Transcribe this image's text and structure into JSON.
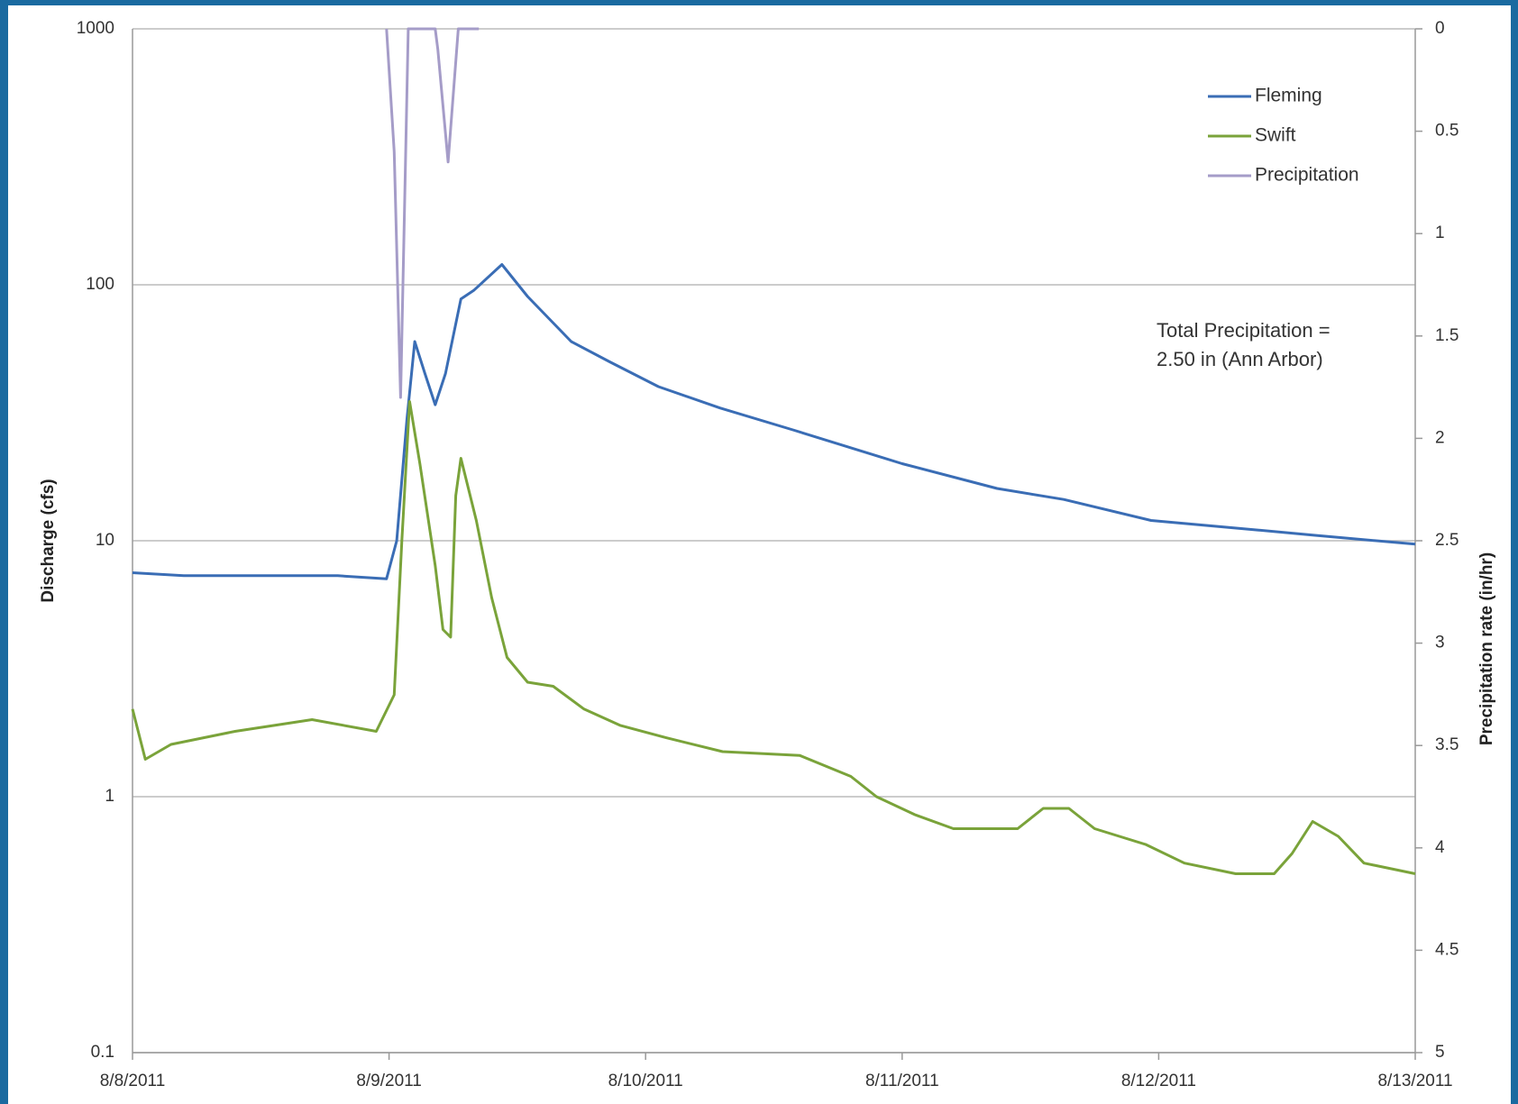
{
  "chart_data": {
    "type": "line",
    "y_label": "Discharge (cfs)",
    "y2_label": "Precipitation rate (in/hr)",
    "annotation": [
      "Total Precipitation =",
      "2.50 in (Ann Arbor)"
    ],
    "xlim": [
      0,
      5
    ],
    "xticks": [
      {
        "value": 0,
        "label": "8/8/2011"
      },
      {
        "value": 1,
        "label": "8/9/2011"
      },
      {
        "value": 2,
        "label": "8/10/2011"
      },
      {
        "value": 3,
        "label": "8/11/2011"
      },
      {
        "value": 4,
        "label": "8/12/2011"
      },
      {
        "value": 5,
        "label": "8/13/2011"
      }
    ],
    "ylim": [
      0.1,
      1000
    ],
    "yticks": [
      0.1,
      1,
      10,
      100,
      1000
    ],
    "y_log": true,
    "y2lim": [
      0,
      5
    ],
    "y2ticks": [
      0,
      0.5,
      1,
      1.5,
      2,
      2.5,
      3,
      3.5,
      4,
      4.5,
      5
    ],
    "y2_reversed": true,
    "grid": true,
    "legend": "upper right",
    "series": [
      {
        "name": "Fleming",
        "color": "#3a6db5",
        "axis": "y",
        "x": [
          0,
          0.2,
          0.5,
          0.8,
          0.99,
          1.03,
          1.07,
          1.1,
          1.14,
          1.18,
          1.22,
          1.28,
          1.33,
          1.44,
          1.54,
          1.71,
          1.86,
          2.05,
          2.29,
          2.58,
          3.0,
          3.37,
          3.63,
          3.97,
          4.39,
          4.61,
          5.0
        ],
        "values": [
          7.5,
          7.3,
          7.3,
          7.3,
          7.1,
          10,
          30,
          60,
          45,
          34,
          45,
          88,
          95,
          120,
          90,
          60,
          50,
          40,
          33,
          27,
          20,
          16,
          14.5,
          12,
          11,
          10.5,
          9.7
        ]
      },
      {
        "name": "Swift",
        "color": "#7aa33a",
        "axis": "y",
        "x": [
          0,
          0.05,
          0.15,
          0.4,
          0.7,
          0.95,
          1.02,
          1.05,
          1.08,
          1.12,
          1.18,
          1.21,
          1.24,
          1.26,
          1.28,
          1.34,
          1.4,
          1.46,
          1.54,
          1.64,
          1.76,
          1.9,
          2.08,
          2.3,
          2.6,
          2.8,
          2.9,
          3.05,
          3.2,
          3.45,
          3.55,
          3.65,
          3.75,
          3.95,
          4.1,
          4.3,
          4.45,
          4.52,
          4.6,
          4.7,
          4.8,
          5.0
        ],
        "values": [
          2.2,
          1.4,
          1.6,
          1.8,
          2.0,
          1.8,
          2.5,
          10,
          35,
          20,
          8,
          4.5,
          4.2,
          15,
          21,
          12,
          6,
          3.5,
          2.8,
          2.7,
          2.2,
          1.9,
          1.7,
          1.5,
          1.45,
          1.2,
          1.0,
          0.85,
          0.75,
          0.75,
          0.9,
          0.9,
          0.75,
          0.65,
          0.55,
          0.5,
          0.5,
          0.6,
          0.8,
          0.7,
          0.55,
          0.5
        ]
      },
      {
        "name": "Precipitation",
        "color": "#a59cc8",
        "axis": "y2",
        "x": [
          0.99,
          1.02,
          1.045,
          1.075,
          1.18,
          1.19,
          1.23,
          1.27,
          1.35
        ],
        "values": [
          0,
          0.6,
          1.8,
          0,
          0,
          0.1,
          0.65,
          0,
          0
        ]
      }
    ]
  }
}
